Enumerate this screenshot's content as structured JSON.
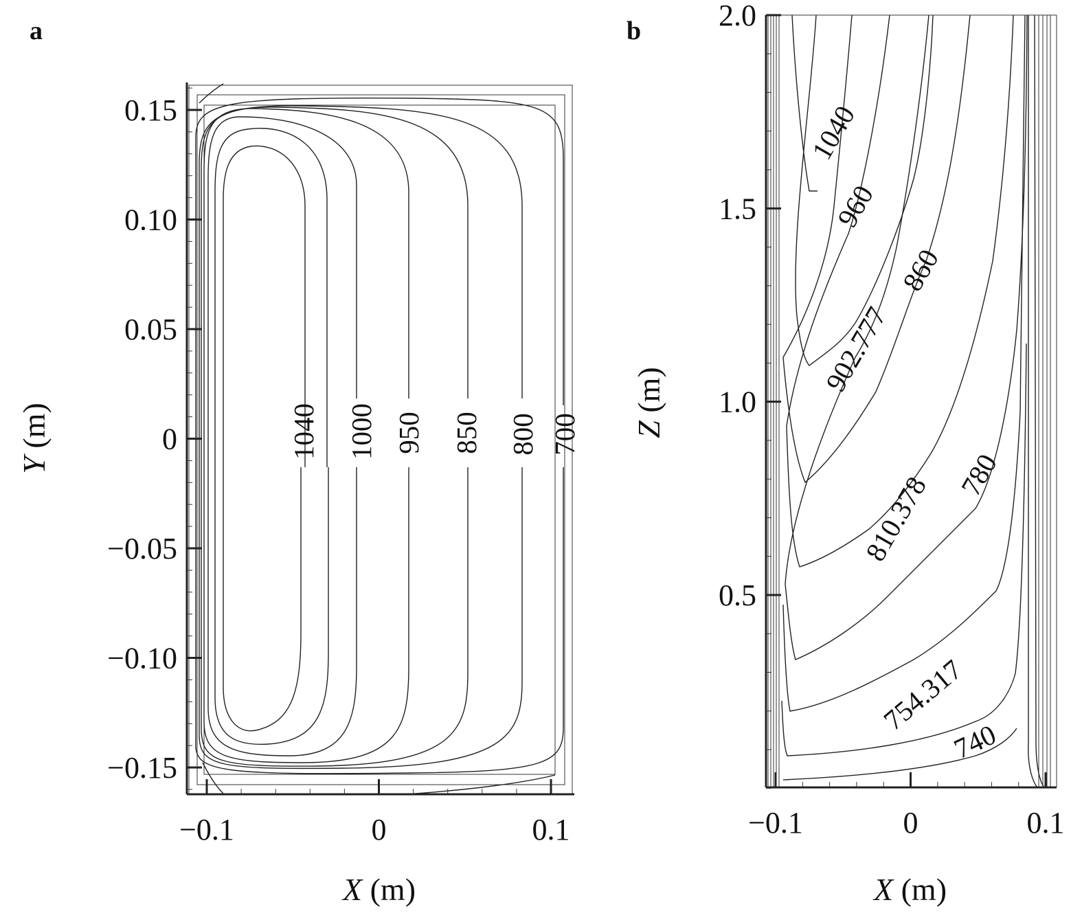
{
  "chart_data": [
    {
      "type": "contour",
      "panel_label": "a",
      "xlabel_var": "X",
      "xlabel_unit": "(m)",
      "ylabel_var": "Y",
      "ylabel_unit": "(m)",
      "xlim": [
        -0.11,
        0.115
      ],
      "ylim": [
        -0.16,
        0.163
      ],
      "xticks": [
        -0.1,
        0,
        0.1
      ],
      "xtick_labels": [
        "−0.1",
        "0",
        "0.1"
      ],
      "yticks": [
        0.15,
        0.1,
        0.05,
        0,
        -0.05,
        -0.1,
        -0.15
      ],
      "ytick_labels": [
        "0.15",
        "0.10",
        "0.05",
        "0",
        "−0.05",
        "−0.10",
        "−0.15"
      ],
      "contours": [
        {
          "level": 1040,
          "label": "1040",
          "x_at_y0": -0.043
        },
        {
          "level": 1000,
          "label": "1000",
          "x_at_y0": -0.01
        },
        {
          "level": 950,
          "label": "950",
          "x_at_y0": 0.018
        },
        {
          "level": 850,
          "label": "850",
          "x_at_y0": 0.053
        },
        {
          "level": 800,
          "label": "800",
          "x_at_y0": 0.084
        },
        {
          "level": 700,
          "label": "700",
          "x_at_y0": 0.107
        }
      ]
    },
    {
      "type": "contour",
      "panel_label": "b",
      "xlabel_var": "X",
      "xlabel_unit": "(m)",
      "ylabel_var": "Z",
      "ylabel_unit": "(m)",
      "xlim": [
        -0.11,
        0.115
      ],
      "ylim": [
        0,
        2.0
      ],
      "xticks": [
        -0.1,
        0,
        0.1
      ],
      "xtick_labels": [
        "−0.1",
        "0",
        "0.1"
      ],
      "yticks": [
        2.0,
        1.5,
        1.0,
        0.5
      ],
      "ytick_labels": [
        "2.0",
        "1.5",
        "1.0",
        "0.5"
      ],
      "contours": [
        {
          "level": 1040,
          "label": "1040"
        },
        {
          "level": 960,
          "label": "960"
        },
        {
          "level": 902.777,
          "label": "902.777"
        },
        {
          "level": 860,
          "label": "860"
        },
        {
          "level": 810.378,
          "label": "810.378"
        },
        {
          "level": 780,
          "label": "780"
        },
        {
          "level": 754.317,
          "label": "754.317"
        },
        {
          "level": 740,
          "label": "740"
        }
      ]
    }
  ]
}
